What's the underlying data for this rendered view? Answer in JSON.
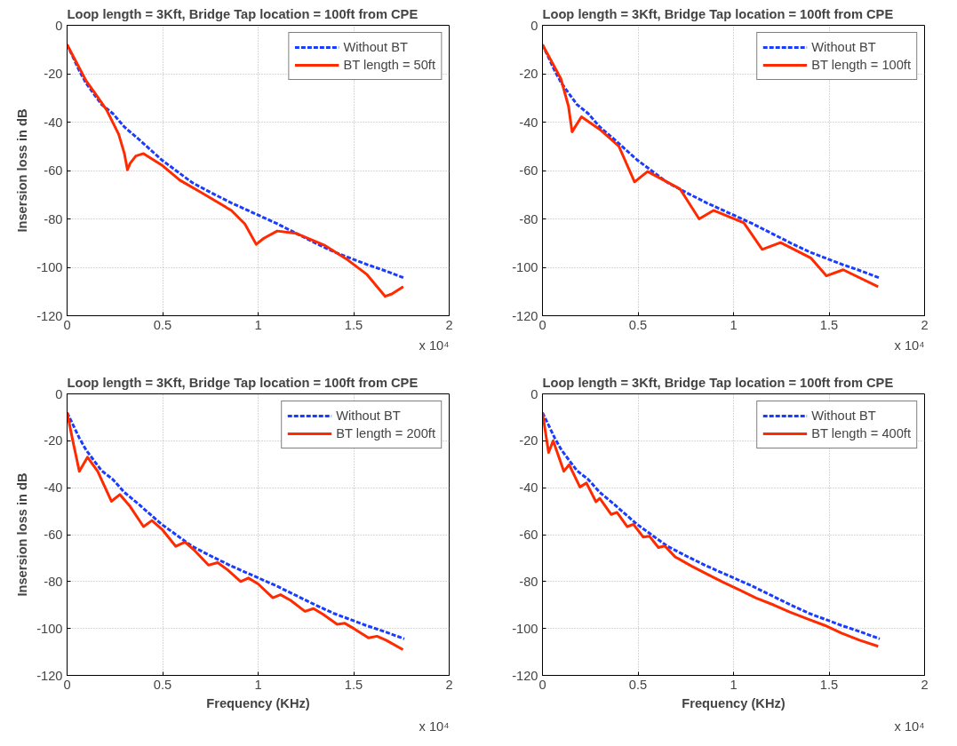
{
  "chart_data": [
    {
      "type": "line",
      "title": "Loop length = 3Kft, Bridge Tap location = 100ft from CPE",
      "ylabel": "Insersion loss in dB",
      "xlim": [
        0,
        2
      ],
      "ylim": [
        -120,
        0
      ],
      "xticks": [
        0,
        0.5,
        1,
        1.5,
        2
      ],
      "yticks": [
        -120,
        -100,
        -80,
        -60,
        -40,
        -20,
        0
      ],
      "grid": true,
      "legend": "top right",
      "annotations": [
        "x 10⁴"
      ],
      "series": [
        {
          "name": "Without BT",
          "color": "#1a3cff",
          "line_style": "dashed",
          "x": [
            0,
            0.03,
            0.064,
            0.1,
            0.18,
            0.24,
            0.3,
            0.37,
            0.495,
            0.655,
            0.75,
            0.86,
            1.0,
            1.1,
            1.2,
            1.3,
            1.4,
            1.565,
            1.65,
            1.765
          ],
          "values": [
            -8,
            -13,
            -18.8,
            -24,
            -32.7,
            -36.5,
            -42,
            -46.7,
            -55.6,
            -65,
            -69,
            -73.4,
            -78.4,
            -82,
            -86,
            -90,
            -93.7,
            -98.7,
            -101,
            -104.4
          ]
        },
        {
          "name": "BT length = 50ft",
          "color": "#ff2a00",
          "line_style": "solid",
          "x": [
            0,
            0.05,
            0.1,
            0.15,
            0.207,
            0.27,
            0.3,
            0.316,
            0.33,
            0.36,
            0.4,
            0.5,
            0.59,
            0.7,
            0.86,
            0.93,
            0.99,
            1.03,
            1.1,
            1.2,
            1.35,
            1.47,
            1.57,
            1.665,
            1.7,
            1.76
          ],
          "values": [
            -8,
            -15.5,
            -23,
            -28.5,
            -35,
            -45,
            -53,
            -59.7,
            -57,
            -54,
            -53,
            -58,
            -64,
            -69,
            -76.5,
            -82,
            -90.5,
            -88,
            -85,
            -86,
            -91,
            -97,
            -103,
            -112,
            -111,
            -108
          ]
        }
      ]
    },
    {
      "type": "line",
      "title": "Loop length = 3Kft, Bridge Tap location = 100ft from CPE",
      "xlim": [
        0,
        2
      ],
      "ylim": [
        -120,
        0
      ],
      "xticks": [
        0,
        0.5,
        1,
        1.5,
        2
      ],
      "yticks": [
        -120,
        -100,
        -80,
        -60,
        -40,
        -20,
        0
      ],
      "grid": true,
      "legend": "top right",
      "annotations": [
        "x 10⁴"
      ],
      "series": [
        {
          "name": "Without BT",
          "color": "#1a3cff",
          "line_style": "dashed",
          "x": [
            0,
            0.03,
            0.064,
            0.1,
            0.18,
            0.24,
            0.3,
            0.37,
            0.495,
            0.655,
            0.75,
            0.86,
            1.0,
            1.1,
            1.2,
            1.3,
            1.4,
            1.565,
            1.65,
            1.765
          ],
          "values": [
            -8,
            -13,
            -18.8,
            -24,
            -32.7,
            -36.5,
            -42,
            -46.7,
            -55.6,
            -65,
            -69,
            -73.4,
            -78.4,
            -82,
            -86,
            -90,
            -93.7,
            -98.7,
            -101,
            -104.4
          ]
        },
        {
          "name": "BT length = 100ft",
          "color": "#ff2a00",
          "line_style": "solid",
          "x": [
            0,
            0.096,
            0.136,
            0.155,
            0.204,
            0.3,
            0.4,
            0.482,
            0.55,
            0.72,
            0.82,
            0.895,
            1.054,
            1.15,
            1.246,
            1.406,
            1.486,
            1.574,
            1.757
          ],
          "values": [
            -8,
            -22,
            -33.4,
            -44,
            -37.8,
            -43,
            -50,
            -64.7,
            -60.4,
            -67.6,
            -80,
            -76.5,
            -81.6,
            -92.6,
            -89.8,
            -96.2,
            -103.5,
            -101,
            -108
          ]
        }
      ]
    },
    {
      "type": "line",
      "title": "Loop length = 3Kft, Bridge Tap location = 100ft from CPE",
      "xlabel": "Frequency (KHz)",
      "ylabel": "Insersion loss in dB",
      "xlim": [
        0,
        2
      ],
      "ylim": [
        -120,
        0
      ],
      "xticks": [
        0,
        0.5,
        1,
        1.5,
        2
      ],
      "yticks": [
        -120,
        -100,
        -80,
        -60,
        -40,
        -20,
        0
      ],
      "grid": true,
      "legend": "top right",
      "annotations": [
        "x 10⁴"
      ],
      "series": [
        {
          "name": "Without BT",
          "color": "#1a3cff",
          "line_style": "dashed",
          "x": [
            0,
            0.03,
            0.064,
            0.1,
            0.18,
            0.24,
            0.3,
            0.37,
            0.495,
            0.655,
            0.75,
            0.86,
            1.0,
            1.1,
            1.2,
            1.3,
            1.4,
            1.565,
            1.65,
            1.765
          ],
          "values": [
            -8,
            -13,
            -18.8,
            -24,
            -32.7,
            -36.5,
            -42,
            -46.7,
            -55.6,
            -65,
            -69,
            -73.4,
            -78.4,
            -82,
            -86,
            -90,
            -93.7,
            -98.7,
            -101,
            -104.4
          ]
        },
        {
          "name": "BT length = 200ft",
          "color": "#ff2a00",
          "line_style": "solid",
          "x": [
            0,
            0.03,
            0.064,
            0.107,
            0.16,
            0.232,
            0.276,
            0.33,
            0.4,
            0.444,
            0.5,
            0.569,
            0.617,
            0.67,
            0.74,
            0.788,
            0.84,
            0.909,
            0.949,
            1.0,
            1.077,
            1.117,
            1.17,
            1.245,
            1.29,
            1.34,
            1.414,
            1.454,
            1.5,
            1.578,
            1.622,
            1.67,
            1.758
          ],
          "values": [
            -8,
            -20,
            -33,
            -27,
            -33,
            -45.8,
            -42.9,
            -48,
            -56.6,
            -54,
            -58,
            -65,
            -63.2,
            -67,
            -73,
            -71.9,
            -75,
            -80,
            -78.5,
            -81,
            -86.9,
            -85.6,
            -88,
            -92.7,
            -91.5,
            -94,
            -98.2,
            -97.8,
            -100,
            -104,
            -103.3,
            -105,
            -109
          ]
        }
      ]
    },
    {
      "type": "line",
      "title": "Loop length = 3Kft, Bridge Tap location = 100ft from CPE",
      "xlabel": "Frequency (KHz)",
      "xlim": [
        0,
        2
      ],
      "ylim": [
        -120,
        0
      ],
      "xticks": [
        0,
        0.5,
        1,
        1.5,
        2
      ],
      "yticks": [
        -120,
        -100,
        -80,
        -60,
        -40,
        -20,
        0
      ],
      "grid": true,
      "legend": "top right",
      "annotations": [
        "x 10⁴"
      ],
      "series": [
        {
          "name": "Without BT",
          "color": "#1a3cff",
          "line_style": "dashed",
          "x": [
            0,
            0.03,
            0.064,
            0.1,
            0.18,
            0.24,
            0.3,
            0.37,
            0.495,
            0.655,
            0.75,
            0.86,
            1.0,
            1.1,
            1.2,
            1.3,
            1.4,
            1.565,
            1.65,
            1.765
          ],
          "values": [
            -8,
            -13,
            -18.8,
            -24,
            -32.7,
            -36.5,
            -42,
            -46.7,
            -55.6,
            -65,
            -69,
            -73.4,
            -78.4,
            -82,
            -86,
            -90,
            -93.7,
            -98.7,
            -101,
            -104.4
          ]
        },
        {
          "name": "BT length = 400ft",
          "color": "#ff2a00",
          "line_style": "solid",
          "x": [
            0,
            0.032,
            0.056,
            0.112,
            0.14,
            0.196,
            0.23,
            0.28,
            0.3,
            0.36,
            0.39,
            0.444,
            0.476,
            0.527,
            0.56,
            0.607,
            0.64,
            0.695,
            0.78,
            0.863,
            0.946,
            1.03,
            1.118,
            1.214,
            1.294,
            1.39,
            1.478,
            1.565,
            1.66,
            1.757
          ],
          "values": [
            -8,
            -25,
            -20,
            -33,
            -30.2,
            -39.7,
            -38,
            -46,
            -44.5,
            -51.4,
            -50.5,
            -56.6,
            -55.6,
            -61,
            -60.7,
            -65.5,
            -64.8,
            -69.5,
            -73.4,
            -76.9,
            -80.3,
            -83.5,
            -87,
            -90.1,
            -93,
            -96,
            -98.7,
            -102,
            -105,
            -107.6
          ]
        }
      ]
    }
  ]
}
